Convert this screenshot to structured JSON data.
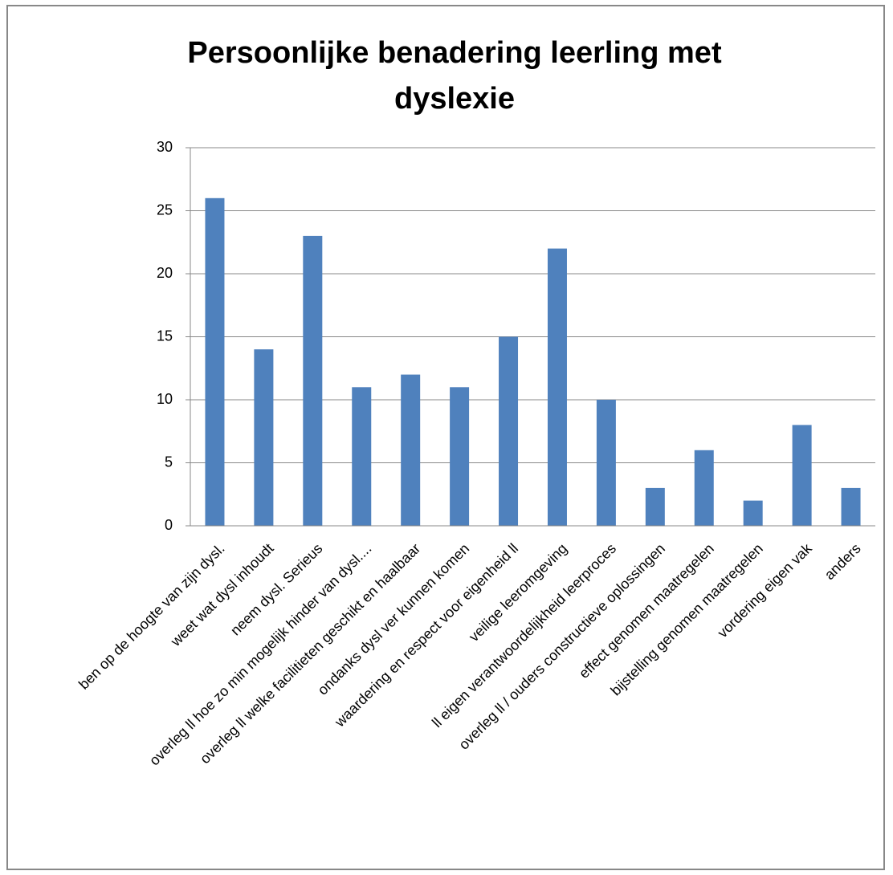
{
  "chart_data": {
    "type": "bar",
    "title": "Persoonlijke benadering leerling met dyslexie",
    "categories": [
      "ben op de hoogte van zijn dysl.",
      "weet wat dysl inhoudt",
      "neem dysl. Serieus",
      "overleg ll hoe zo min mogelijk hinder van dysl....",
      "overleg ll welke facilitieten geschikt en haalbaar",
      "ondanks dysl ver kunnen komen",
      "waardering en respect voor eigenheid ll",
      "veilige leeromgeving",
      "ll eigen verantwoordelijkheid leerproces",
      "overleg ll / ouders constructieve oplossingen",
      "effect genomen maatregelen",
      "bijstelling genomen maatregelen",
      "vordering eigen vak",
      "anders"
    ],
    "values": [
      26,
      14,
      23,
      11,
      12,
      11,
      15,
      22,
      10,
      3,
      6,
      2,
      8,
      3
    ],
    "color": "#4f81bd",
    "ylim": [
      0,
      30
    ],
    "yticks": [
      0,
      5,
      10,
      15,
      20,
      25,
      30
    ],
    "grid": true
  }
}
